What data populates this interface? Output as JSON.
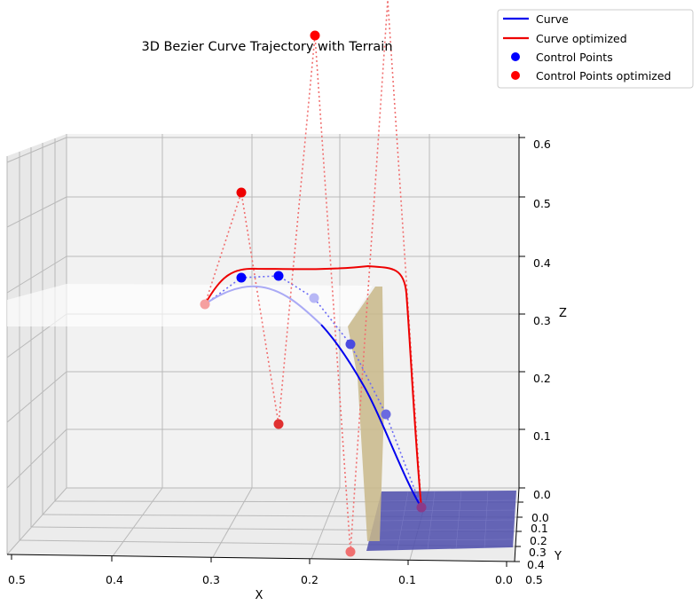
{
  "chart_data": {
    "type": "line3d",
    "title": "3D Bezier Curve Trajectory with Terrain",
    "xlabel": "X",
    "ylabel": "Y",
    "zlabel": "Z",
    "x_ticks": [
      "0.5",
      "0.4",
      "0.3",
      "0.2",
      "0.1",
      "0.0"
    ],
    "y_ticks": [
      "0.0",
      "0.1",
      "0.2",
      "0.3",
      "0.4",
      "0.5"
    ],
    "z_ticks": [
      "0.0",
      "0.1",
      "0.2",
      "0.3",
      "0.4",
      "0.5",
      "0.6"
    ],
    "xlim": [
      0.0,
      0.5
    ],
    "ylim": [
      0.0,
      0.5
    ],
    "zlim": [
      0.0,
      0.6
    ],
    "legend": {
      "placement": "top-right",
      "entries": [
        {
          "label": "Curve",
          "kind": "line",
          "color": "#0000ee"
        },
        {
          "label": "Curve optimized",
          "kind": "line",
          "color": "#ee0000"
        },
        {
          "label": "Control Points",
          "kind": "marker",
          "color": "#0000ff"
        },
        {
          "label": "Control Points optimized",
          "kind": "marker",
          "color": "#ff0000"
        }
      ]
    },
    "series": [
      {
        "name": "Control Points",
        "color": "#0000ff",
        "points": [
          {
            "x": 0.1,
            "y": 0.2,
            "z": 0.0
          },
          {
            "x": 0.1,
            "y": 0.2,
            "z": 0.13
          },
          {
            "x": 0.13,
            "y": 0.2,
            "z": 0.27
          },
          {
            "x": 0.17,
            "y": 0.2,
            "z": 0.35
          },
          {
            "x": 0.22,
            "y": 0.2,
            "z": 0.4
          },
          {
            "x": 0.28,
            "y": 0.2,
            "z": 0.4
          },
          {
            "x": 0.29,
            "y": 0.2,
            "z": 0.35
          }
        ]
      },
      {
        "name": "Control Points optimized",
        "color": "#ff0000",
        "points": [
          {
            "x": 0.1,
            "y": 0.2,
            "z": 0.0
          },
          {
            "x": 0.12,
            "y": 0.2,
            "z": 1.0
          },
          {
            "x": 0.16,
            "y": 0.2,
            "z": -0.05
          },
          {
            "x": 0.2,
            "y": 0.2,
            "z": 0.95
          },
          {
            "x": 0.24,
            "y": 0.2,
            "z": 0.12
          },
          {
            "x": 0.28,
            "y": 0.2,
            "z": 0.52
          },
          {
            "x": 0.29,
            "y": 0.2,
            "z": 0.35
          }
        ]
      }
    ],
    "terrain": {
      "color": "#c9b98a",
      "ground_color": "#4c4cab"
    }
  }
}
